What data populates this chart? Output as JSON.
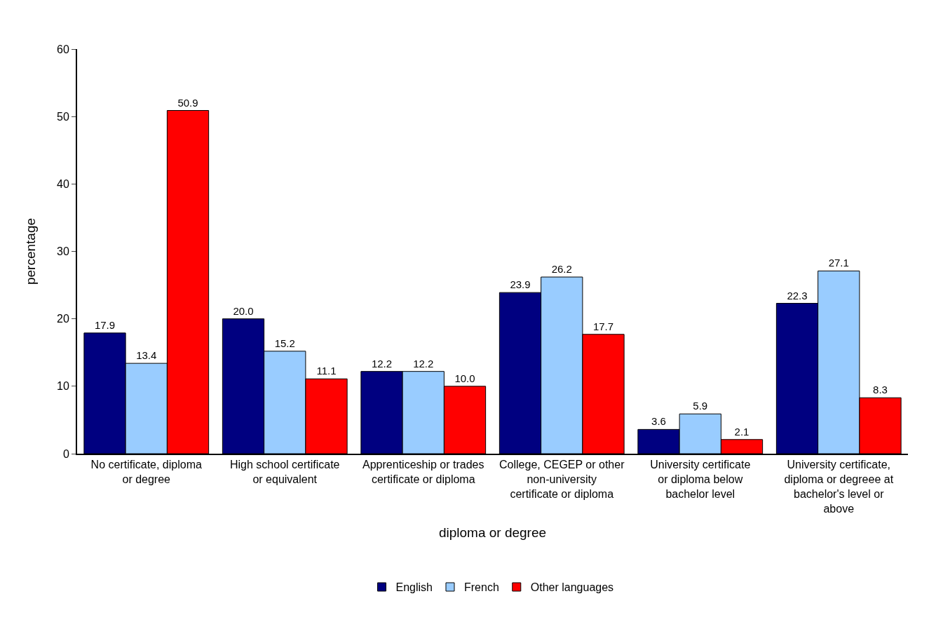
{
  "chart_data": {
    "type": "bar",
    "xlabel": "diploma or degree",
    "ylabel": "percentage",
    "categories": [
      "No certificate, diploma or degree",
      "High school certificate or equivalent",
      "Apprenticeship or trades certificate or diploma",
      "College, CEGEP or other non-university certificate or diploma",
      "University certificate or diploma below bachelor level",
      "University certificate, diploma or degreee at bachelor's level or above"
    ],
    "series": [
      {
        "name": "English",
        "color": "#000080",
        "values": [
          17.9,
          20.0,
          12.2,
          23.9,
          3.6,
          22.3
        ],
        "value_labels": [
          "17.9",
          "20.0",
          "12.2",
          "23.9",
          "3.6",
          "22.3"
        ]
      },
      {
        "name": "French",
        "color": "#99ccff",
        "values": [
          13.4,
          15.2,
          12.2,
          26.2,
          5.9,
          27.1
        ],
        "value_labels": [
          "13.4",
          "15.2",
          "12.2",
          "26.2",
          "5.9",
          "27.1"
        ]
      },
      {
        "name": "Other languages",
        "color": "#ff0000",
        "values": [
          50.9,
          11.1,
          10.0,
          17.7,
          2.1,
          8.3
        ],
        "value_labels": [
          "50.9",
          "11.1",
          "10.0",
          "17.7",
          "2.1",
          "8.3"
        ]
      }
    ],
    "ylim": [
      0,
      60
    ],
    "yticks": [
      0,
      10,
      20,
      30,
      40,
      50,
      60
    ],
    "grid": false,
    "legend": "bottom"
  }
}
